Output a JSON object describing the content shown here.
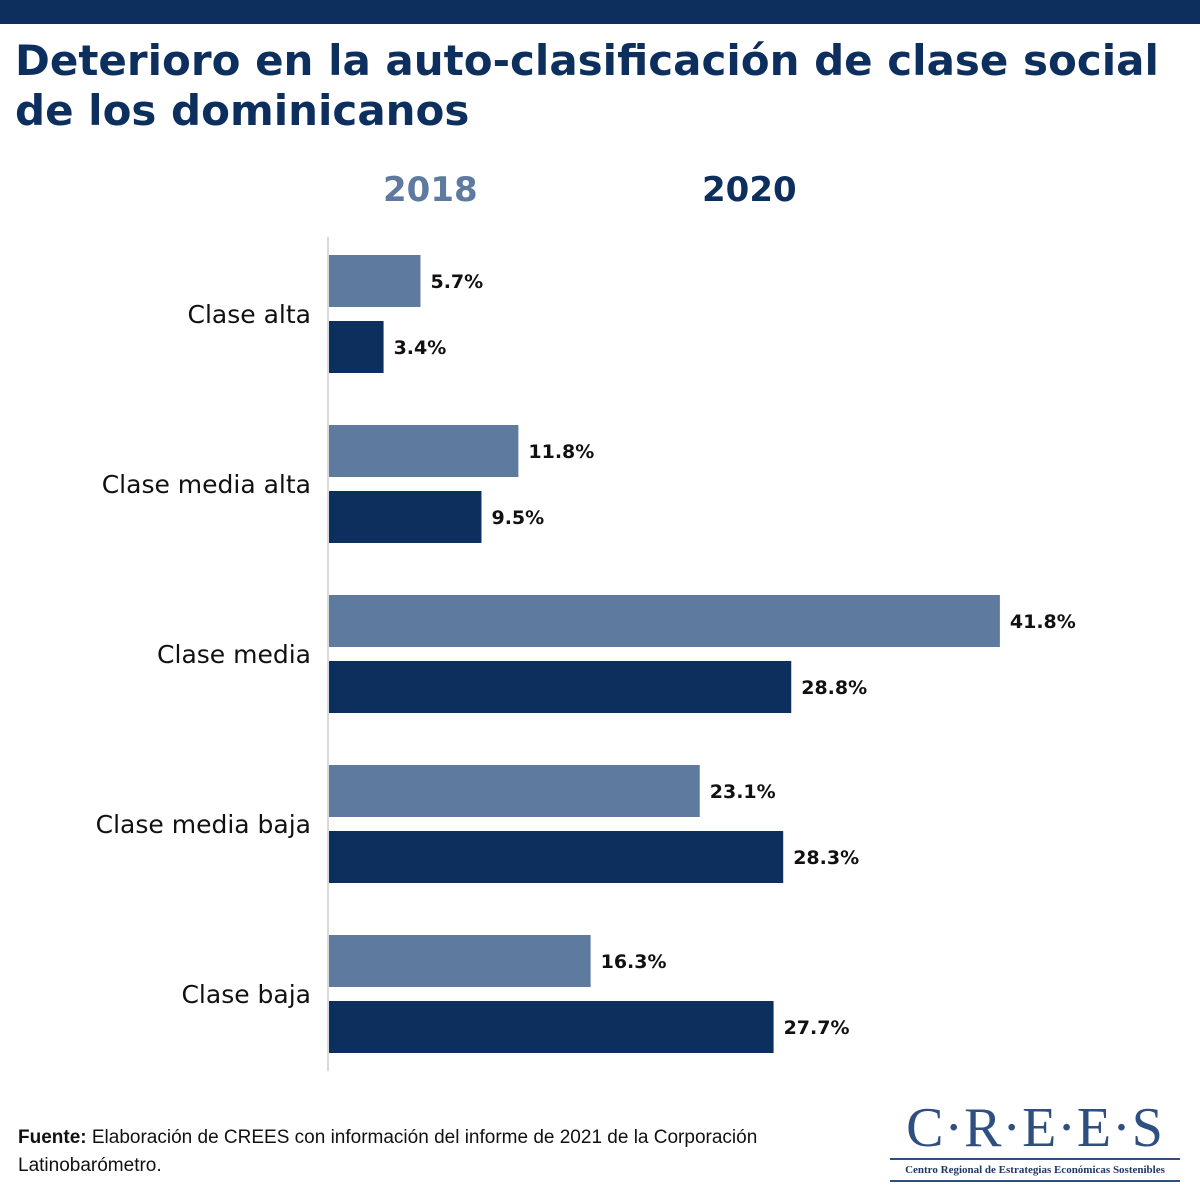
{
  "colors": {
    "series_2018": "#5f7a9f",
    "series_2020": "#0d2f5e",
    "title": "#0d2f5e",
    "top_bar": "#0d2f5e",
    "axis": "#d9d9d9",
    "logo": "#2e4f80"
  },
  "header": {
    "title": "Deterioro en la auto-clasificación de clase social de los dominicanos"
  },
  "chart_data": {
    "type": "bar",
    "orientation": "horizontal",
    "title": "Deterioro en la auto-clasificación de clase social de los dominicanos",
    "categories": [
      "Clase alta",
      "Clase media alta",
      "Clase media",
      "Clase media baja",
      "Clase baja"
    ],
    "series": [
      {
        "name": "2018",
        "values": [
          5.7,
          11.8,
          41.8,
          23.1,
          16.3
        ],
        "labels": [
          "5.7%",
          "11.8%",
          "41.8%",
          "23.1%",
          "16.3%"
        ]
      },
      {
        "name": "2020",
        "values": [
          3.4,
          9.5,
          28.8,
          28.3,
          27.7
        ],
        "labels": [
          "3.4%",
          "9.5%",
          "28.8%",
          "28.3%",
          "27.7%"
        ]
      }
    ],
    "xlim": [
      0,
      50
    ],
    "xlabel": "",
    "ylabel": "",
    "grid": false,
    "legend": "top"
  },
  "footer": {
    "source_label": "Fuente:",
    "source_text": " Elaboración de CREES con información del informe de 2021 de la Corporación Latinobarómetro."
  },
  "logo": {
    "wordmark": "C·R·E·E·S",
    "subtitle": "Centro Regional de Estrategias Económicas Sostenibles"
  }
}
